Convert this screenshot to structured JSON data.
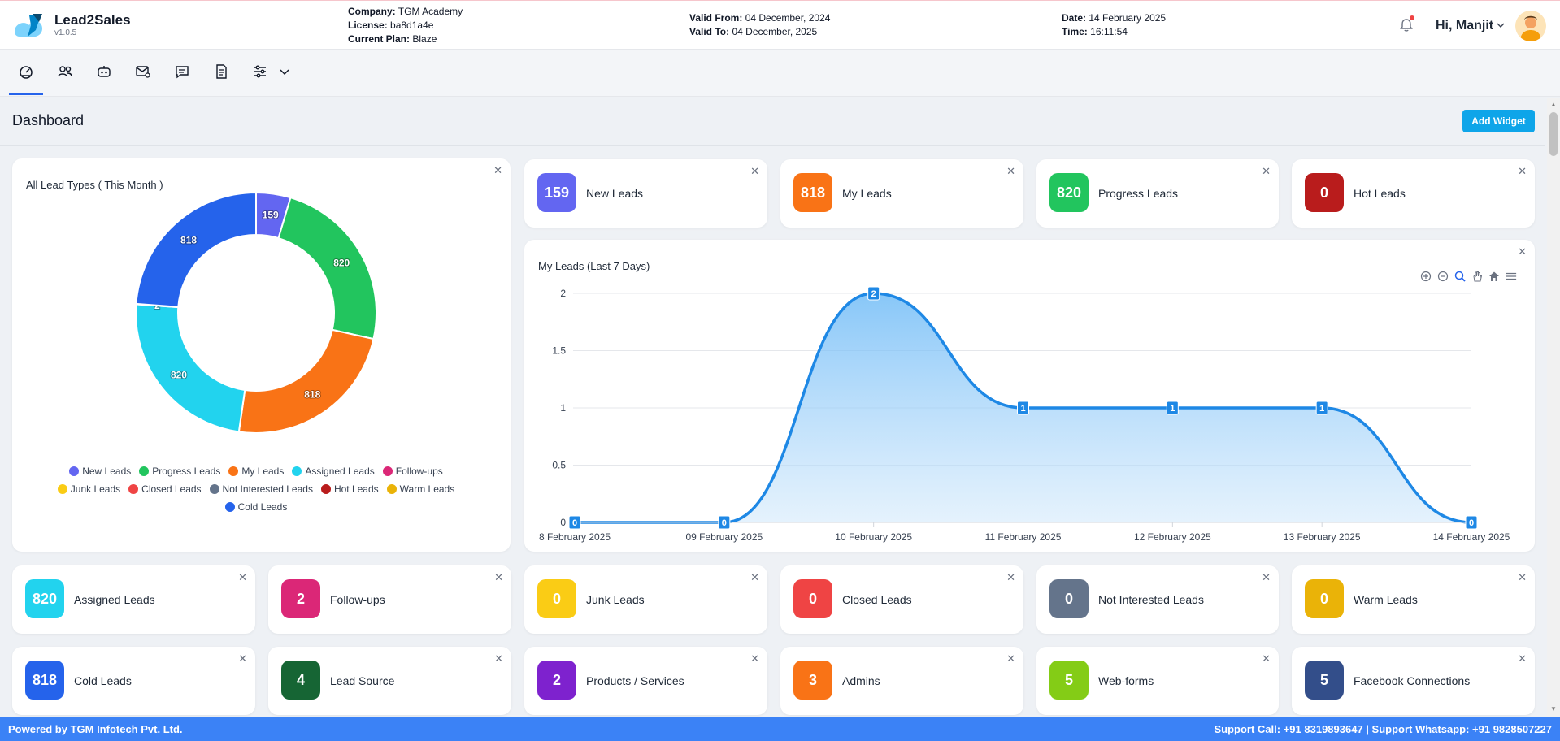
{
  "header": {
    "brand": "Lead2Sales",
    "version": "v1.0.5",
    "company_label": "Company:",
    "company": "TGM Academy",
    "license_label": "License:",
    "license": "ba8d1a4e",
    "plan_label": "Current Plan:",
    "plan": "Blaze",
    "valid_from_label": "Valid From:",
    "valid_from": "04 December, 2024",
    "valid_to_label": "Valid To:",
    "valid_to": "04 December, 2025",
    "date_label": "Date:",
    "date": "14 February 2025",
    "time_label": "Time:",
    "time": "16:11:54",
    "greeting": "Hi, Manjit"
  },
  "toolbar": {
    "icons": [
      "dashboard-icon",
      "users-icon",
      "bot-icon",
      "mail-settings-icon",
      "chat-icon",
      "document-icon",
      "sliders-icon",
      "chevron-down-icon"
    ]
  },
  "page": {
    "title": "Dashboard",
    "add_widget": "Add Widget"
  },
  "donut": {
    "title": "All Lead Types ( This Month )",
    "legend": [
      {
        "label": "New Leads",
        "color": "#6366f1"
      },
      {
        "label": "Progress Leads",
        "color": "#22c55e"
      },
      {
        "label": "My Leads",
        "color": "#f97316"
      },
      {
        "label": "Assigned Leads",
        "color": "#22d3ee"
      },
      {
        "label": "Follow-ups",
        "color": "#db2777"
      },
      {
        "label": "Junk Leads",
        "color": "#facc15"
      },
      {
        "label": "Closed Leads",
        "color": "#ef4444"
      },
      {
        "label": "Not Interested Leads",
        "color": "#64748b"
      },
      {
        "label": "Hot Leads",
        "color": "#b91c1c"
      },
      {
        "label": "Warm Leads",
        "color": "#eab308"
      },
      {
        "label": "Cold Leads",
        "color": "#2563eb"
      }
    ]
  },
  "top_stats": [
    {
      "value": "159",
      "label": "New Leads",
      "color": "#6366f1"
    },
    {
      "value": "818",
      "label": "My Leads",
      "color": "#f97316"
    },
    {
      "value": "820",
      "label": "Progress Leads",
      "color": "#22c55e"
    },
    {
      "value": "0",
      "label": "Hot Leads",
      "color": "#b91c1c"
    }
  ],
  "row1_stats": [
    {
      "value": "820",
      "label": "Assigned Leads",
      "color": "#22d3ee"
    },
    {
      "value": "2",
      "label": "Follow-ups",
      "color": "#db2777"
    },
    {
      "value": "0",
      "label": "Junk Leads",
      "color": "#facc15"
    },
    {
      "value": "0",
      "label": "Closed Leads",
      "color": "#ef4444"
    },
    {
      "value": "0",
      "label": "Not Interested Leads",
      "color": "#64748b"
    },
    {
      "value": "0",
      "label": "Warm Leads",
      "color": "#eab308"
    }
  ],
  "row2_stats": [
    {
      "value": "818",
      "label": "Cold Leads",
      "color": "#2563eb"
    },
    {
      "value": "4",
      "label": "Lead Source",
      "color": "#166534"
    },
    {
      "value": "2",
      "label": "Products / Services",
      "color": "#7e22ce"
    },
    {
      "value": "3",
      "label": "Admins",
      "color": "#f97316"
    },
    {
      "value": "5",
      "label": "Web-forms",
      "color": "#84cc16"
    },
    {
      "value": "5",
      "label": "Facebook Connections",
      "color": "#334e8a"
    }
  ],
  "chart_data": [
    {
      "type": "pie",
      "title": "All Lead Types ( This Month )",
      "categories": [
        "New Leads",
        "Progress Leads",
        "My Leads",
        "Assigned Leads",
        "Follow-ups",
        "Junk Leads",
        "Closed Leads",
        "Not Interested Leads",
        "Hot Leads",
        "Warm Leads",
        "Cold Leads"
      ],
      "values": [
        159,
        820,
        818,
        820,
        2,
        0,
        0,
        0,
        0,
        0,
        818
      ],
      "donut": true,
      "legend": "bottom"
    },
    {
      "type": "area",
      "title": "My Leads (Last 7 Days)",
      "categories": [
        "8 February 2025",
        "09 February 2025",
        "10 February 2025",
        "11 February 2025",
        "12 February 2025",
        "13 February 2025",
        "14 February 2025"
      ],
      "values": [
        0,
        0,
        2,
        1,
        1,
        1,
        0
      ],
      "yticks": [
        "0",
        "0.5",
        "1",
        "1.5",
        "2"
      ],
      "ylim": [
        0,
        2
      ],
      "grid": true,
      "color": "#1e88e5"
    }
  ],
  "footer": {
    "left": "Powered by TGM Infotech Pvt. Ltd.",
    "right": "Support Call: +91 8319893647 | Support Whatsapp: +91 9828507227"
  }
}
